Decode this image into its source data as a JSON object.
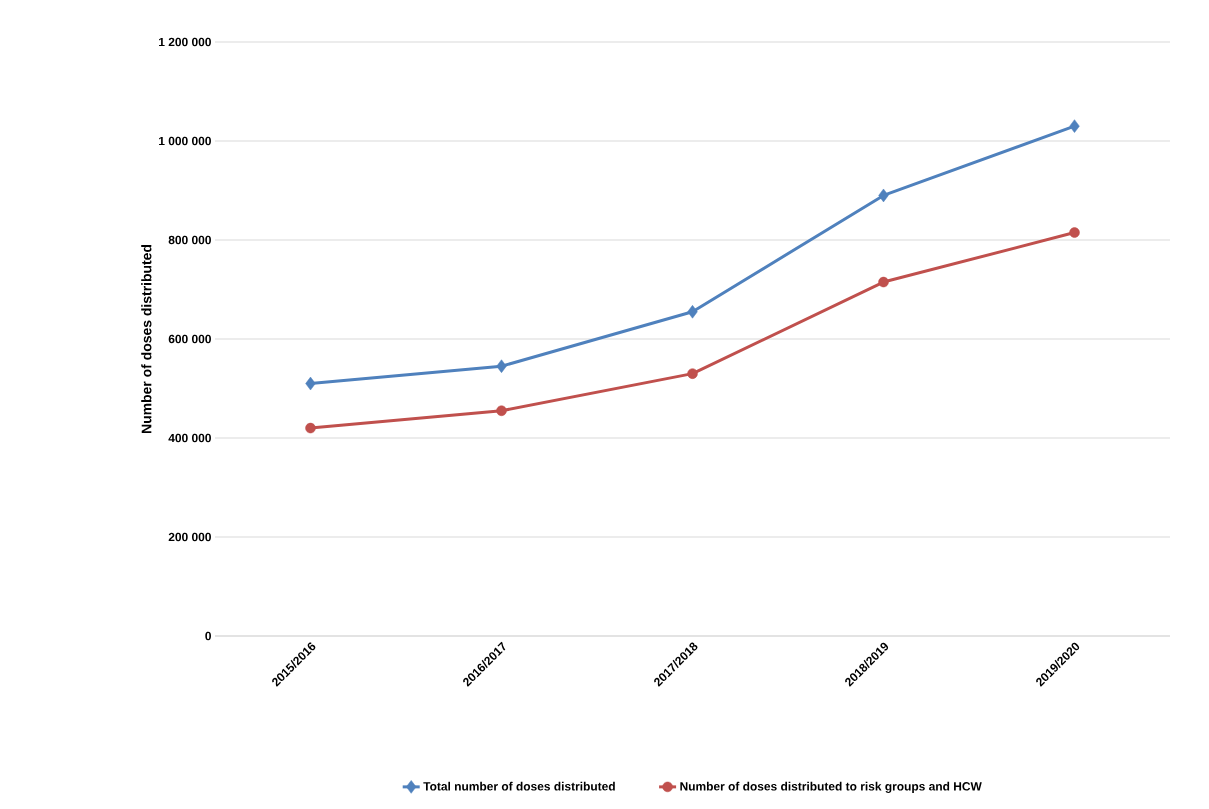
{
  "chart_data": {
    "type": "line",
    "ylabel": "Number of doses distributed",
    "categories": [
      "2015/2016",
      "2016/2017",
      "2017/2018",
      "2018/2019",
      "2019/2020"
    ],
    "series": [
      {
        "name": "Total number of doses distributed",
        "color": "#4f81bd",
        "marker": "diamond",
        "values": [
          510000,
          545000,
          655000,
          890000,
          1030000
        ]
      },
      {
        "name": "Number of doses distributed to risk groups and HCW",
        "color": "#c0504d",
        "marker": "circle",
        "values": [
          420000,
          455000,
          530000,
          715000,
          815000
        ]
      }
    ],
    "ylim": [
      0,
      1200000
    ],
    "yticks": [
      {
        "value": 0,
        "label": "0"
      },
      {
        "value": 200000,
        "label": "200 000"
      },
      {
        "value": 400000,
        "label": "400 000"
      },
      {
        "value": 600000,
        "label": "600 000"
      },
      {
        "value": 800000,
        "label": "800 000"
      },
      {
        "value": 1000000,
        "label": "1 000 000"
      },
      {
        "value": 1200000,
        "label": "1 200 000"
      }
    ],
    "grid": "y",
    "legend": "bottom",
    "line_style": "solid"
  }
}
